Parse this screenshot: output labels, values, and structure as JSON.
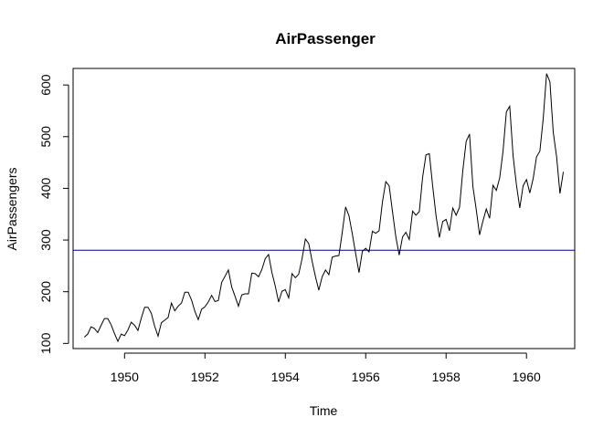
{
  "chart_data": {
    "type": "line",
    "title": "AirPassenger",
    "xlabel": "Time",
    "ylabel": "AirPassengers",
    "xlim": [
      1948.72,
      1961.2
    ],
    "ylim": [
      90,
      632
    ],
    "x_start": 1949,
    "frequency": 12,
    "x_ticks": [
      1950,
      1952,
      1954,
      1956,
      1958,
      1960
    ],
    "x_tick_labels": [
      "1950",
      "1952",
      "1954",
      "1956",
      "1958",
      "1960"
    ],
    "y_ticks": [
      100,
      200,
      300,
      400,
      500,
      600
    ],
    "y_tick_labels": [
      "100",
      "200",
      "300",
      "400",
      "500",
      "600"
    ],
    "hline": 280.3,
    "line_color": "#000000",
    "hline_color": "#00008b",
    "grid": false,
    "legend": "none",
    "series": [
      {
        "values": [
          112,
          118,
          132,
          129,
          121,
          135,
          148,
          148,
          136,
          119,
          104,
          118,
          115,
          126,
          141,
          135,
          125,
          149,
          170,
          170,
          158,
          133,
          114,
          140,
          145,
          150,
          178,
          163,
          172,
          178,
          199,
          199,
          184,
          162,
          146,
          166,
          171,
          180,
          193,
          181,
          183,
          218,
          230,
          242,
          209,
          191,
          172,
          194,
          196,
          196,
          236,
          235,
          229,
          243,
          264,
          272,
          237,
          211,
          180,
          201,
          204,
          188,
          235,
          227,
          234,
          264,
          302,
          293,
          259,
          229,
          203,
          229,
          242,
          233,
          267,
          269,
          270,
          315,
          364,
          347,
          312,
          274,
          237,
          278,
          284,
          277,
          317,
          313,
          318,
          374,
          413,
          405,
          355,
          306,
          271,
          306,
          315,
          301,
          356,
          348,
          355,
          422,
          465,
          467,
          404,
          347,
          305,
          336,
          340,
          318,
          362,
          348,
          363,
          435,
          491,
          505,
          404,
          359,
          310,
          337,
          360,
          342,
          406,
          396,
          420,
          472,
          548,
          559,
          463,
          407,
          362,
          405,
          417,
          391,
          419,
          461,
          472,
          535,
          622,
          606,
          508,
          461,
          390,
          432
        ]
      }
    ]
  }
}
